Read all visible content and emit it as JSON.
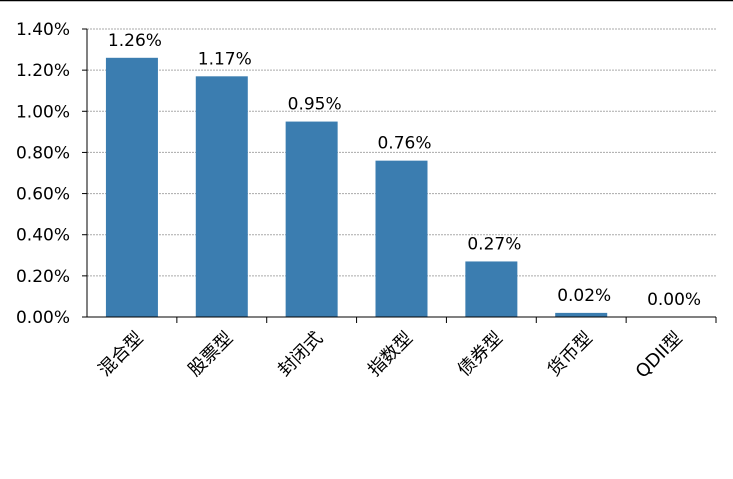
{
  "chart_data": {
    "type": "bar",
    "title": "",
    "xlabel": "",
    "ylabel": "",
    "categories": [
      "混合型",
      "股票型",
      "封闭式",
      "指数型",
      "债券型",
      "货币型",
      "QDII型"
    ],
    "values": [
      1.26,
      1.17,
      0.95,
      0.76,
      0.27,
      0.02,
      0.0
    ],
    "data_labels": [
      "1.26%",
      "1.17%",
      "0.95%",
      "0.76%",
      "0.27%",
      "0.02%",
      "0.00%"
    ],
    "ylim": [
      0,
      1.4
    ],
    "yticks": [
      "0.00%",
      "0.20%",
      "0.40%",
      "0.60%",
      "0.80%",
      "1.00%",
      "1.20%",
      "1.40%"
    ],
    "grid": true,
    "legend": "none",
    "bar_color": "#3b7db0"
  }
}
